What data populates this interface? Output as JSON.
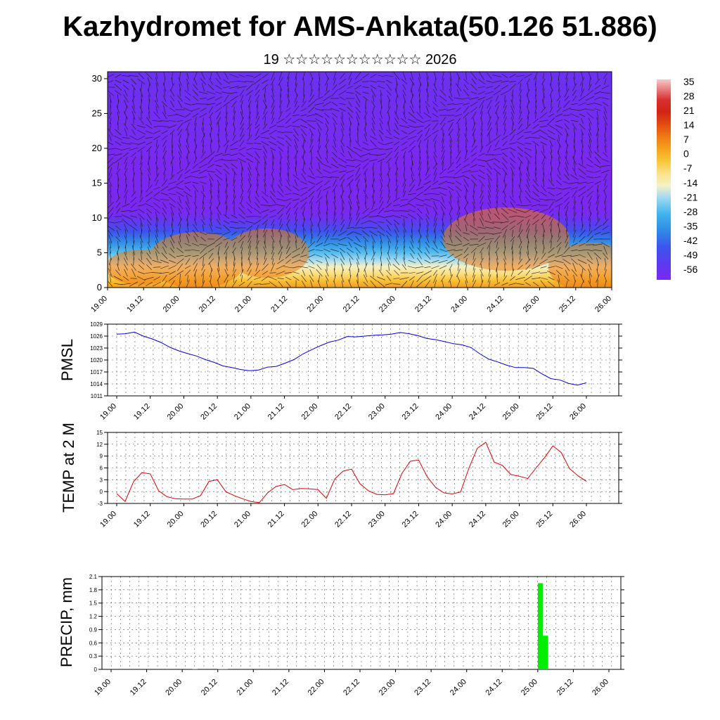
{
  "header": {
    "title": "Kazhydromet for AMS-Ankata(50.126 51.886)",
    "subtitle": "19 ☆☆☆☆☆☆☆☆☆☆☆ 2026"
  },
  "chart_data": [
    {
      "type": "heatmap",
      "name": "vertical-section",
      "title": "",
      "x_tick_labels": [
        "19.00",
        "19.12",
        "20.00",
        "20.12",
        "21.00",
        "21.12",
        "22.00",
        "22.12",
        "23.00",
        "23.12",
        "24.00",
        "24.12",
        "25.00",
        "25.12",
        "26.00"
      ],
      "y_ticks": [
        0,
        5,
        10,
        15,
        20,
        25,
        30
      ],
      "ylim": [
        0,
        31
      ],
      "colorbar": {
        "labels": [
          "35",
          "28",
          "21",
          "14",
          "7",
          "0",
          "-7",
          "-14",
          "-21",
          "-28",
          "-35",
          "-42",
          "-49",
          "-56"
        ],
        "range": [
          -60,
          38
        ],
        "stops": [
          {
            "v": -60,
            "color": "#7a28f0"
          },
          {
            "v": -52,
            "color": "#5a3cf0"
          },
          {
            "v": -44,
            "color": "#3c55ec"
          },
          {
            "v": -36,
            "color": "#2f8ae6"
          },
          {
            "v": -28,
            "color": "#3fb4ec"
          },
          {
            "v": -20,
            "color": "#9ed8f2"
          },
          {
            "v": -14,
            "color": "#f4f2c8"
          },
          {
            "v": -8,
            "color": "#fbe28a"
          },
          {
            "v": -2,
            "color": "#f9c637"
          },
          {
            "v": 4,
            "color": "#f6a21e"
          },
          {
            "v": 10,
            "color": "#f07a14"
          },
          {
            "v": 16,
            "color": "#e24c10"
          },
          {
            "v": 22,
            "color": "#d22414"
          },
          {
            "v": 28,
            "color": "#d83030"
          },
          {
            "v": 34,
            "color": "#ea8a8a"
          },
          {
            "v": 38,
            "color": "#f6c8c8"
          }
        ]
      }
    },
    {
      "type": "line",
      "name": "pmsl",
      "ylabel": "PMSL",
      "x_tick_labels": [
        "19.00",
        "19.12",
        "20.00",
        "20.12",
        "21.00",
        "21.12",
        "22.00",
        "22.12",
        "23.00",
        "23.12",
        "24.00",
        "24.12",
        "25.00",
        "25.12",
        "26.00"
      ],
      "y_ticks": [
        1011,
        1014,
        1017,
        1020,
        1023,
        1026,
        1029
      ],
      "ylim": [
        1011,
        1029
      ],
      "color": "#0000dd",
      "values": [
        1026.5,
        1026.6,
        1027.0,
        1026.0,
        1025.3,
        1024.4,
        1023.2,
        1022.3,
        1021.6,
        1021.0,
        1020.1,
        1019.4,
        1018.5,
        1018.1,
        1017.6,
        1017.3,
        1017.5,
        1018.2,
        1018.4,
        1019.2,
        1020.1,
        1021.5,
        1022.6,
        1023.6,
        1024.5,
        1025.0,
        1025.9,
        1025.8,
        1026.0,
        1026.2,
        1026.3,
        1026.5,
        1026.9,
        1026.6,
        1026.1,
        1025.4,
        1025.1,
        1024.6,
        1024.1,
        1023.8,
        1023.1,
        1021.5,
        1020.2,
        1019.5,
        1018.7,
        1018.1,
        1018.1,
        1017.9,
        1016.5,
        1015.3,
        1015.0,
        1014.1,
        1013.7,
        1014.3
      ]
    },
    {
      "type": "line",
      "name": "temp-2m",
      "ylabel": "TEMP at 2 M",
      "x_tick_labels": [
        "19.00",
        "19.12",
        "20.00",
        "20.12",
        "21.00",
        "21.12",
        "22.00",
        "22.12",
        "23.00",
        "23.12",
        "24.00",
        "24.12",
        "25.00",
        "25.12",
        "26.00"
      ],
      "y_ticks": [
        -3,
        0,
        3,
        6,
        9,
        12,
        15
      ],
      "ylim": [
        -3,
        15
      ],
      "color": "#dd0000",
      "values": [
        -0.5,
        -2.5,
        2.5,
        4.8,
        4.5,
        0.2,
        -1.3,
        -1.8,
        -1.9,
        -1.9,
        -1.0,
        2.6,
        3.0,
        0.0,
        -1.0,
        -1.8,
        -2.5,
        -2.8,
        -0.3,
        1.3,
        1.8,
        0.5,
        0.8,
        0.7,
        0.5,
        -1.7,
        3.2,
        5.2,
        5.7,
        2.0,
        0.2,
        -0.7,
        -0.8,
        -0.5,
        4.6,
        7.7,
        8.0,
        3.8,
        1.1,
        -0.3,
        -0.6,
        -0.1,
        6.0,
        11.0,
        12.5,
        7.5,
        6.6,
        4.3,
        3.9,
        3.3,
        6.0,
        8.6,
        11.6,
        9.9,
        5.8,
        4.0,
        2.6
      ]
    },
    {
      "type": "bar",
      "name": "precip",
      "ylabel": "PRECIP, mm",
      "x_tick_labels": [
        "19.00",
        "19.12",
        "20.00",
        "20.12",
        "21.00",
        "21.12",
        "22.00",
        "22.12",
        "23.00",
        "23.12",
        "24.00",
        "24.12",
        "25.00",
        "25.12",
        "26.00"
      ],
      "y_ticks": [
        0.0,
        0.3,
        0.6,
        0.9,
        1.2,
        1.5,
        1.8,
        2.1
      ],
      "ylim": [
        0,
        2.1
      ],
      "color": "#00ee00",
      "values": [
        0,
        0,
        0,
        0,
        0,
        0,
        0,
        0,
        0,
        0,
        0,
        0,
        0,
        0,
        0,
        0,
        0.01,
        0,
        0,
        0,
        0,
        0.01,
        0.01,
        0,
        0,
        0,
        0,
        0,
        0,
        0,
        0,
        0,
        0,
        0,
        0,
        0,
        0,
        0,
        0,
        0,
        0,
        0,
        0,
        0,
        0,
        0,
        0,
        0,
        0,
        0,
        0,
        0,
        0,
        0,
        0,
        0,
        0,
        0,
        0,
        0,
        0,
        0,
        0,
        0,
        0,
        0,
        0,
        0,
        0,
        0,
        0,
        0,
        0,
        0,
        0,
        0,
        0,
        0,
        0,
        0.01,
        0,
        0,
        0,
        0,
        1.95,
        0.76,
        0,
        0,
        0,
        0,
        0,
        0,
        0,
        0,
        0,
        0,
        0,
        0
      ]
    }
  ]
}
